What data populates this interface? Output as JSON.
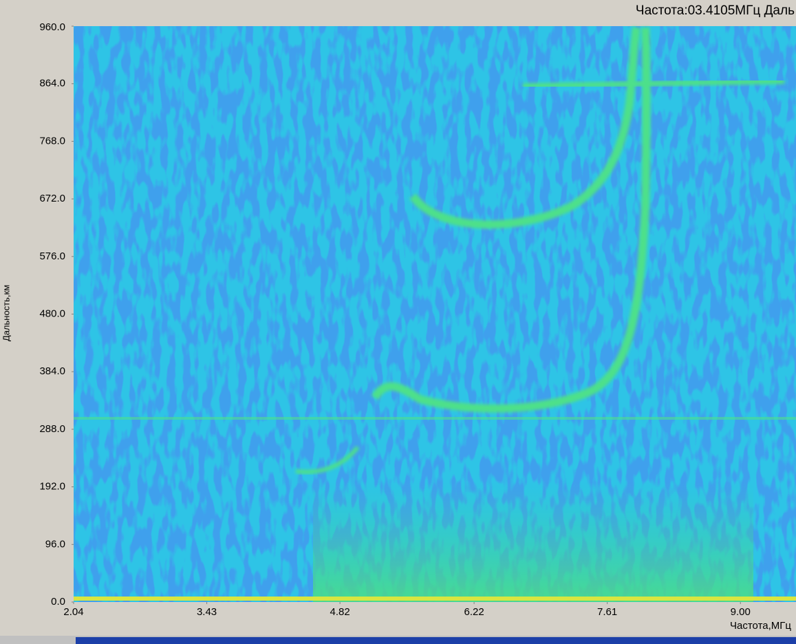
{
  "chart_data": {
    "type": "heatmap",
    "title": "Частота:03.4105МГц Даль",
    "x_label": "Частота,МГц",
    "y_label": "Дальность,км",
    "xlim": [
      2.04,
      9.58
    ],
    "xticks": [
      2.04,
      3.43,
      4.82,
      6.22,
      7.61,
      {
        "value": 9,
        "label": "9.00"
      }
    ],
    "ylim": [
      0,
      960
    ],
    "yticks": [
      {
        "value": 0,
        "label": "0.0"
      },
      {
        "value": 96,
        "label": "96.0"
      },
      {
        "value": 192,
        "label": "192.0"
      },
      {
        "value": 288,
        "label": "288.0"
      },
      {
        "value": 384,
        "label": "384.0"
      },
      {
        "value": 480,
        "label": "480.0"
      },
      {
        "value": 576,
        "label": "576.0"
      },
      {
        "value": 672,
        "label": "672.0"
      },
      {
        "value": 768,
        "label": "768.0"
      },
      {
        "value": 864,
        "label": "864.0"
      },
      {
        "value": 960,
        "label": "960.0"
      }
    ]
  }
}
